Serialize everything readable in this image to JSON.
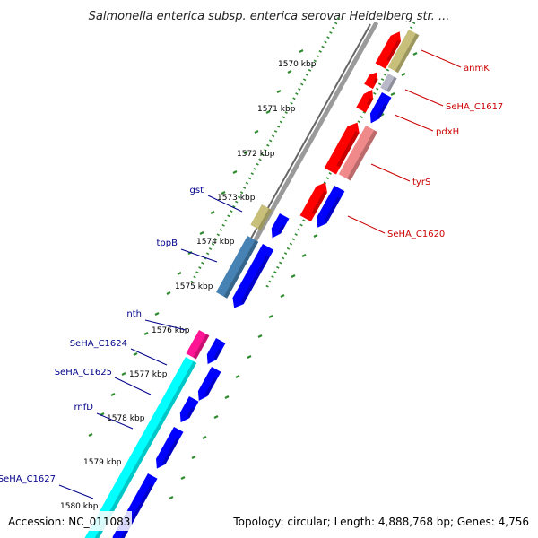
{
  "title": "Salmonella enterica subsp. enterica serovar Heidelberg str. ...",
  "footer": {
    "accession": "Accession: NC_011083",
    "topology": "Topology: circular; Length: 4,888,768 bp; Genes: 4,756"
  },
  "colors": {
    "backbone": "#888888",
    "tick": "#2e8b2e",
    "left_label": "#00008b",
    "right_label": "#cc0000",
    "red_gene": "#ff0000",
    "blue_gene": "#0000ff",
    "khaki_gene": "#c8c07a",
    "gray_gene": "#b8b8c8",
    "pink_gene": "#f08a8a",
    "steel_gene": "#4682b4",
    "magenta_gene": "#ff1493",
    "cyan_gene": "#00ffff"
  },
  "scale": {
    "unit": "kbp",
    "ticks": [
      {
        "label": "1570 kbp"
      },
      {
        "label": "1571 kbp"
      },
      {
        "label": "1572 kbp"
      },
      {
        "label": "1573 kbp"
      },
      {
        "label": "1574 kbp"
      },
      {
        "label": "1575 kbp"
      },
      {
        "label": "1576 kbp"
      },
      {
        "label": "1577 kbp"
      },
      {
        "label": "1578 kbp"
      },
      {
        "label": "1579 kbp"
      },
      {
        "label": "1580 kbp"
      }
    ]
  },
  "genes_left": [
    {
      "label": "gst"
    },
    {
      "label": "tppB"
    },
    {
      "label": "nth"
    },
    {
      "label": "SeHA_C1624"
    },
    {
      "label": "SeHA_C1625"
    },
    {
      "label": "rnfD"
    },
    {
      "label": "SeHA_C1627"
    }
  ],
  "genes_right": [
    {
      "label": "anmK"
    },
    {
      "label": "SeHA_C1617"
    },
    {
      "label": "pdxH"
    },
    {
      "label": "tyrS"
    },
    {
      "label": "SeHA_C1620"
    }
  ]
}
